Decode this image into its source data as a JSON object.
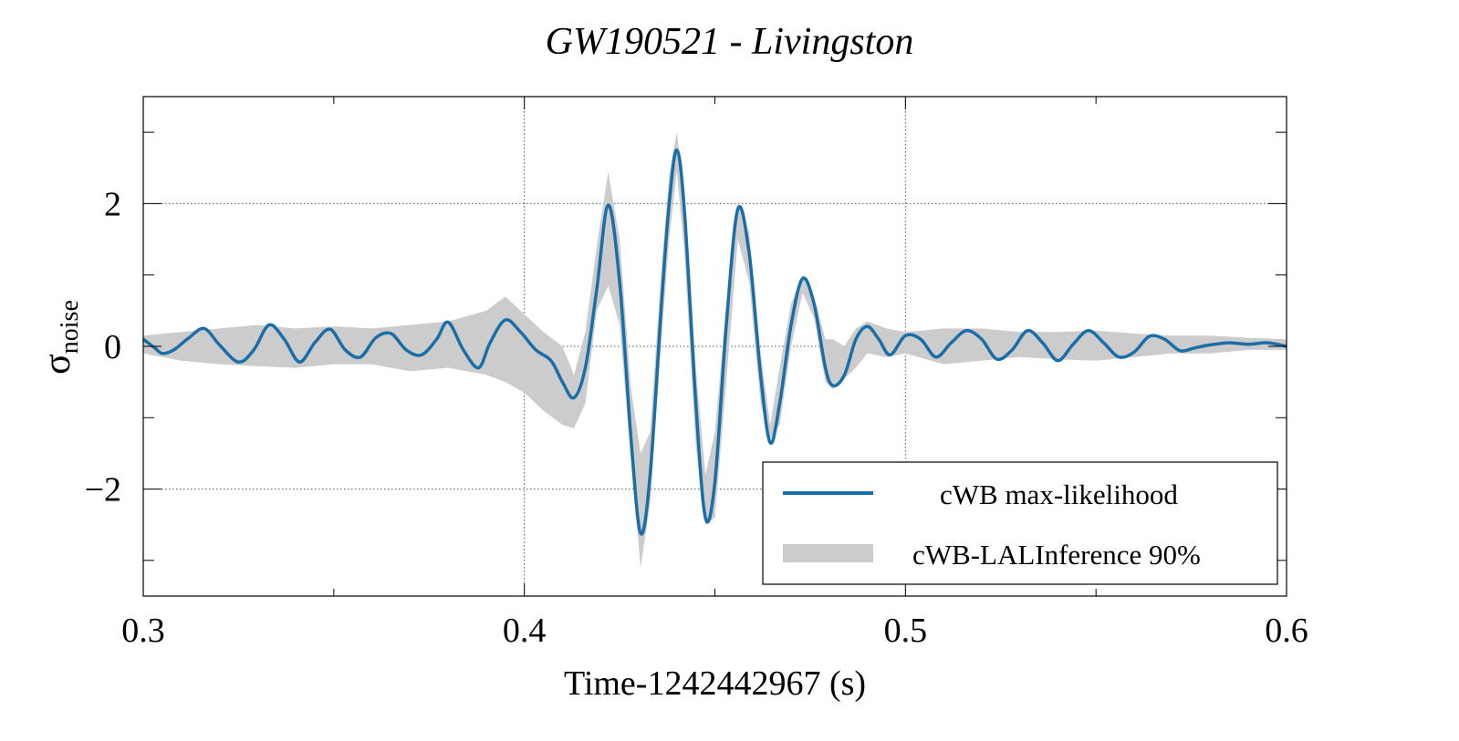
{
  "chart_data": {
    "type": "line",
    "title": "GW190521 - Livingston",
    "xlabel": "Time-1242442967 (s)",
    "ylabel_symbol": "σ",
    "ylabel_subscript": "noise",
    "xlim": [
      0.3,
      0.6
    ],
    "ylim": [
      -3.5,
      3.5
    ],
    "xticks": [
      0.3,
      0.4,
      0.5,
      0.6
    ],
    "xtick_labels": [
      "0.3",
      "0.4",
      "0.5",
      "0.6"
    ],
    "x_minor_ticks": [
      0.35,
      0.45,
      0.55
    ],
    "yticks": [
      -2,
      0,
      2
    ],
    "ytick_labels": [
      "−2",
      "0",
      "2"
    ],
    "y_minor_ticks": [
      -3,
      -1,
      1,
      3
    ],
    "grid": true,
    "legend_position": "bottom-right",
    "series": [
      {
        "name": "cWB max-likelihood",
        "kind": "line",
        "color": "#1a6ea8",
        "x": [
          0.3,
          0.303,
          0.305,
          0.308,
          0.312,
          0.316,
          0.32,
          0.325,
          0.329,
          0.333,
          0.337,
          0.341,
          0.345,
          0.349,
          0.353,
          0.357,
          0.361,
          0.365,
          0.369,
          0.373,
          0.377,
          0.38,
          0.384,
          0.388,
          0.391,
          0.395,
          0.399,
          0.403,
          0.407,
          0.41,
          0.413,
          0.416,
          0.419,
          0.422,
          0.425,
          0.428,
          0.4305,
          0.433,
          0.436,
          0.438,
          0.44,
          0.442,
          0.445,
          0.4475,
          0.45,
          0.453,
          0.456,
          0.459,
          0.462,
          0.4645,
          0.467,
          0.47,
          0.473,
          0.476,
          0.479,
          0.481,
          0.484,
          0.487,
          0.49,
          0.493,
          0.496,
          0.5,
          0.504,
          0.508,
          0.512,
          0.516,
          0.52,
          0.524,
          0.528,
          0.532,
          0.536,
          0.54,
          0.544,
          0.548,
          0.552,
          0.556,
          0.56,
          0.564,
          0.568,
          0.572,
          0.576,
          0.58,
          0.585,
          0.59,
          0.595,
          0.6
        ],
        "y": [
          0.1,
          -0.02,
          -0.1,
          -0.05,
          0.12,
          0.25,
          0.02,
          -0.22,
          -0.05,
          0.3,
          0.1,
          -0.22,
          0.05,
          0.24,
          -0.05,
          -0.15,
          0.12,
          0.18,
          -0.05,
          -0.12,
          0.1,
          0.34,
          -0.05,
          -0.3,
          0.05,
          0.37,
          0.2,
          -0.05,
          -0.2,
          -0.5,
          -0.72,
          -0.3,
          0.8,
          1.98,
          0.9,
          -1.3,
          -2.62,
          -1.8,
          0.6,
          2.0,
          2.75,
          1.9,
          -0.8,
          -2.4,
          -1.9,
          0.3,
          1.92,
          1.3,
          -0.4,
          -1.35,
          -0.8,
          0.3,
          0.95,
          0.6,
          -0.3,
          -0.55,
          -0.4,
          0.1,
          0.28,
          0.1,
          -0.12,
          0.15,
          0.1,
          -0.15,
          0.05,
          0.22,
          0.1,
          -0.18,
          -0.05,
          0.22,
          0.05,
          -0.2,
          0.03,
          0.22,
          0.05,
          -0.15,
          -0.08,
          0.14,
          0.1,
          -0.06,
          -0.02,
          0.02,
          0.05,
          0.03,
          0.05,
          0.0
        ]
      },
      {
        "name": "cWB-LALInference 90%",
        "kind": "band",
        "color": "#cccccc",
        "x": [
          0.3,
          0.31,
          0.32,
          0.33,
          0.34,
          0.35,
          0.36,
          0.37,
          0.38,
          0.39,
          0.395,
          0.4,
          0.405,
          0.41,
          0.413,
          0.416,
          0.419,
          0.422,
          0.425,
          0.428,
          0.4305,
          0.433,
          0.436,
          0.438,
          0.44,
          0.442,
          0.445,
          0.4475,
          0.45,
          0.453,
          0.456,
          0.459,
          0.462,
          0.4645,
          0.467,
          0.47,
          0.473,
          0.476,
          0.479,
          0.481,
          0.484,
          0.487,
          0.49,
          0.495,
          0.5,
          0.51,
          0.52,
          0.53,
          0.54,
          0.55,
          0.56,
          0.57,
          0.58,
          0.59,
          0.6
        ],
        "lower": [
          -0.1,
          -0.2,
          -0.25,
          -0.28,
          -0.3,
          -0.25,
          -0.25,
          -0.35,
          -0.3,
          -0.4,
          -0.5,
          -0.65,
          -0.9,
          -1.1,
          -1.15,
          -0.8,
          0.5,
          0.85,
          0.3,
          -1.6,
          -3.1,
          -2.2,
          0.1,
          1.5,
          2.45,
          1.3,
          -1.4,
          -2.5,
          -2.4,
          -0.5,
          1.5,
          0.9,
          -0.8,
          -1.3,
          -1.1,
          0.0,
          0.75,
          0.4,
          -0.5,
          -0.6,
          -0.45,
          -0.3,
          -0.1,
          -0.15,
          -0.1,
          -0.25,
          -0.2,
          -0.15,
          -0.18,
          -0.2,
          -0.15,
          -0.1,
          -0.1,
          -0.05,
          -0.05
        ],
        "upper": [
          0.15,
          0.2,
          0.25,
          0.3,
          0.25,
          0.28,
          0.25,
          0.3,
          0.35,
          0.5,
          0.7,
          0.45,
          0.2,
          0.0,
          -0.4,
          0.2,
          1.4,
          2.45,
          1.5,
          -0.6,
          -1.5,
          -1.2,
          1.1,
          2.4,
          3.0,
          2.2,
          -0.3,
          -1.8,
          -1.2,
          0.6,
          2.0,
          1.6,
          -0.1,
          -1.1,
          -0.3,
          0.6,
          1.0,
          0.7,
          0.1,
          0.1,
          0.0,
          0.25,
          0.35,
          0.25,
          0.2,
          0.25,
          0.25,
          0.2,
          0.2,
          0.22,
          0.18,
          0.15,
          0.15,
          0.12,
          0.1
        ]
      }
    ]
  }
}
